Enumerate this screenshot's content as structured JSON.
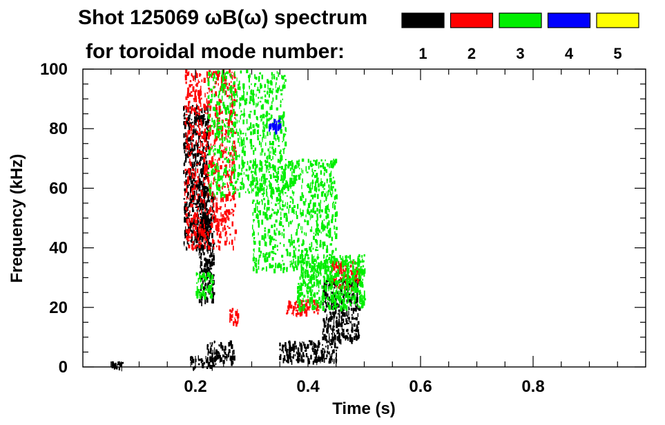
{
  "chart_data": {
    "type": "scatter",
    "title": "Shot 125069 ωB(ω) spectrum",
    "subtitle": "for toroidal mode number:",
    "xlabel": "Time (s)",
    "ylabel": "Frequency (kHz)",
    "xlim": [
      0.0,
      1.0
    ],
    "ylim": [
      0,
      100
    ],
    "x_ticks": [
      0.2,
      0.4,
      0.6,
      0.8
    ],
    "x_tick_labels": [
      "0.2",
      "0.4",
      "0.6",
      "0.8"
    ],
    "y_ticks": [
      0,
      20,
      40,
      60,
      80,
      100
    ],
    "y_tick_labels": [
      "0",
      "20",
      "40",
      "60",
      "80",
      "100"
    ],
    "grid": false,
    "legend_position": "top-right",
    "legend": [
      {
        "label": "1",
        "color": "#000000"
      },
      {
        "label": "2",
        "color": "#ff0000"
      },
      {
        "label": "3",
        "color": "#00ee00"
      },
      {
        "label": "4",
        "color": "#0000ff"
      },
      {
        "label": "5",
        "color": "#ffff00"
      }
    ],
    "series": [
      {
        "name": "1",
        "color": "#000000",
        "regions": [
          {
            "t": [
              0.178,
              0.222
            ],
            "f": [
              40,
              88
            ]
          },
          {
            "t": [
              0.205,
              0.232
            ],
            "f": [
              22,
              60
            ]
          },
          {
            "t": [
              0.19,
              0.235
            ],
            "f": [
              0,
              4
            ]
          },
          {
            "t": [
              0.22,
              0.27
            ],
            "f": [
              2,
              9
            ]
          },
          {
            "t": [
              0.345,
              0.45
            ],
            "f": [
              2,
              9
            ]
          },
          {
            "t": [
              0.425,
              0.49
            ],
            "f": [
              9,
              30
            ]
          },
          {
            "t": [
              0.05,
              0.07
            ],
            "f": [
              0,
              2
            ]
          }
        ]
      },
      {
        "name": "2",
        "color": "#ff0000",
        "regions": [
          {
            "t": [
              0.18,
              0.27
            ],
            "f": [
              40,
              100
            ]
          },
          {
            "t": [
              0.26,
              0.275
            ],
            "f": [
              15,
              20
            ]
          },
          {
            "t": [
              0.36,
              0.42
            ],
            "f": [
              18,
              23
            ]
          },
          {
            "t": [
              0.44,
              0.49
            ],
            "f": [
              27,
              36
            ]
          }
        ]
      },
      {
        "name": "3",
        "color": "#00ee00",
        "regions": [
          {
            "t": [
              0.22,
              0.36
            ],
            "f": [
              58,
              100
            ]
          },
          {
            "t": [
              0.3,
              0.45
            ],
            "f": [
              33,
              70
            ]
          },
          {
            "t": [
              0.38,
              0.5
            ],
            "f": [
              20,
              38
            ]
          },
          {
            "t": [
              0.2,
              0.23
            ],
            "f": [
              24,
              32
            ]
          }
        ]
      },
      {
        "name": "4",
        "color": "#0000ff",
        "regions": [
          {
            "t": [
              0.33,
              0.35
            ],
            "f": [
              79,
              84
            ]
          }
        ]
      },
      {
        "name": "5",
        "color": "#ffff00",
        "regions": []
      }
    ]
  }
}
